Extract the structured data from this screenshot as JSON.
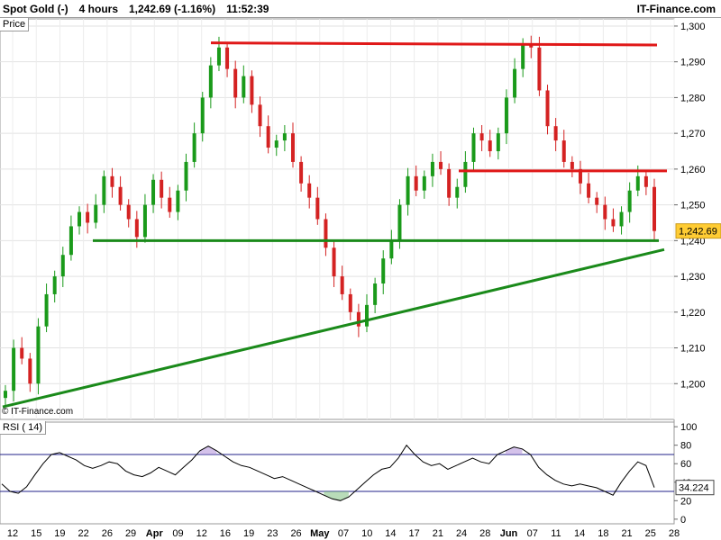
{
  "header": {
    "instrument": "Spot Gold (-)",
    "timeframe": "4 hours",
    "last_price_change": "1,242.69 (-1.16%)",
    "time": "11:52:39",
    "brand": "IT-Finance.com"
  },
  "watermark": "© IT-Finance.com",
  "chart_data": [
    {
      "type": "candlestick",
      "title": "",
      "pane_label": "Price",
      "ylim": [
        1190,
        1302
      ],
      "y_ticks": [
        "1,300",
        "1,290",
        "1,280",
        "1,270",
        "1,260",
        "1,250",
        "1,240",
        "1,230",
        "1,220",
        "1,210",
        "1,200"
      ],
      "last_value_label": "1,242.69",
      "x_ticks": [
        "12",
        "15",
        "19",
        "22",
        "26",
        "29",
        "Apr",
        "09",
        "12",
        "16",
        "19",
        "23",
        "26",
        "May",
        "07",
        "10",
        "14",
        "17",
        "21",
        "24",
        "28",
        "Jun",
        "07",
        "11",
        "14",
        "18",
        "21",
        "25",
        "28"
      ],
      "series_close": [
        1198,
        1210,
        1207,
        1200,
        1216,
        1225,
        1230,
        1236,
        1244,
        1248,
        1245,
        1250,
        1258,
        1255,
        1250,
        1246,
        1241,
        1250,
        1257,
        1252,
        1248,
        1254,
        1262,
        1270,
        1280,
        1289,
        1294,
        1288,
        1280,
        1286,
        1278,
        1272,
        1266,
        1268,
        1270,
        1262,
        1256,
        1252,
        1246,
        1238,
        1230,
        1225,
        1220,
        1216,
        1222,
        1228,
        1235,
        1240,
        1250,
        1258,
        1254,
        1258,
        1262,
        1260,
        1252,
        1255,
        1262,
        1270,
        1268,
        1265,
        1270,
        1280,
        1288,
        1295,
        1294,
        1282,
        1272,
        1268,
        1262,
        1260,
        1256,
        1252,
        1250,
        1246,
        1244,
        1248,
        1254,
        1258,
        1255,
        1242.69
      ],
      "levels": {
        "resistance_top": 1295,
        "resistance_mid": 1259.5,
        "support": 1240
      }
    },
    {
      "type": "line",
      "title": "",
      "pane_label": "RSI ( 14)",
      "ylim": [
        -5,
        105
      ],
      "y_ticks": [
        "100",
        "80",
        "60",
        "40",
        "20",
        "0"
      ],
      "bands": [
        70,
        30
      ],
      "last_value_label": "34.224",
      "series_rsi": [
        38,
        30,
        28,
        35,
        48,
        60,
        70,
        72,
        68,
        64,
        58,
        55,
        58,
        62,
        60,
        52,
        48,
        46,
        50,
        56,
        52,
        48,
        56,
        64,
        74,
        79,
        74,
        68,
        62,
        58,
        56,
        52,
        48,
        44,
        46,
        42,
        38,
        34,
        30,
        26,
        22,
        20,
        24,
        32,
        40,
        48,
        54,
        56,
        66,
        80,
        70,
        62,
        58,
        60,
        54,
        58,
        62,
        66,
        62,
        60,
        70,
        74,
        78,
        76,
        70,
        56,
        48,
        42,
        38,
        36,
        38,
        36,
        34,
        30,
        26,
        40,
        52,
        62,
        58,
        34.224
      ]
    }
  ],
  "colors": {
    "up": "#1a9a1a",
    "down": "#d42222",
    "resistance": "#e01818",
    "support": "#1a8a1a",
    "rsi_line": "#000000",
    "rsi_band": "#22228a",
    "last_tag": "#ffcc33"
  }
}
